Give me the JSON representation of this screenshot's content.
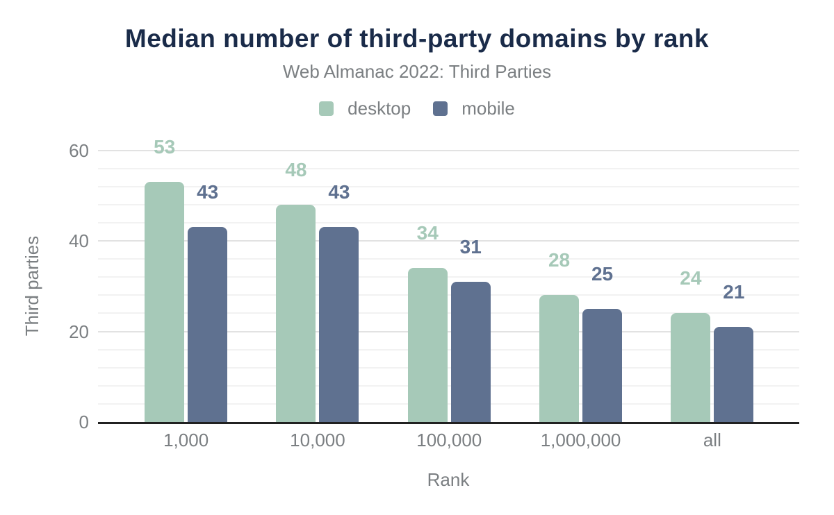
{
  "chart_data": {
    "type": "bar",
    "title": "Median number of third-party domains by rank",
    "subtitle": "Web Almanac 2022: Third Parties",
    "xlabel": "Rank",
    "ylabel": "Third parties",
    "categories": [
      "1,000",
      "10,000",
      "100,000",
      "1,000,000",
      "all"
    ],
    "series": [
      {
        "name": "desktop",
        "color": "#a6c9b8",
        "values": [
          53,
          48,
          34,
          28,
          24
        ]
      },
      {
        "name": "mobile",
        "color": "#5f7190",
        "values": [
          43,
          43,
          31,
          25,
          21
        ]
      }
    ],
    "ylim": [
      0,
      60
    ],
    "yticks": [
      0,
      20,
      40,
      60
    ],
    "minor_grid_step": 4,
    "grid": true,
    "legend_position": "top",
    "value_labels": true
  },
  "colors": {
    "title": "#1a2b49",
    "muted_text": "#7b7f82",
    "major_gridline": "#e2e2e2",
    "minor_gridline": "#f2f2f2",
    "axis_baseline": "#212121",
    "background": "#ffffff"
  }
}
